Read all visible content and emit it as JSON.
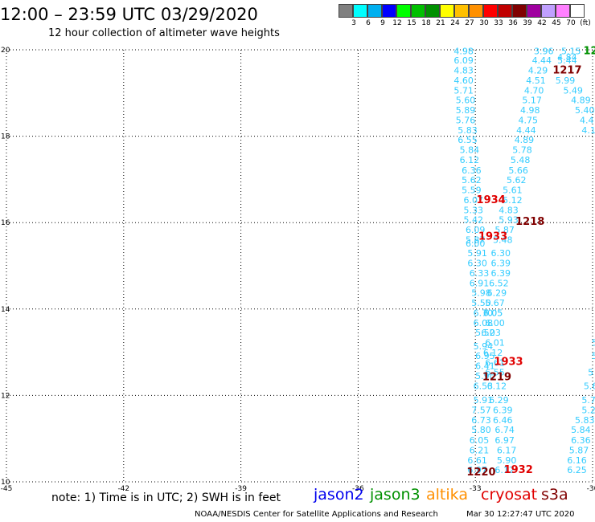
{
  "header": {
    "title": "12:00 – 23:59 UTC 03/29/2020",
    "subtitle": "12 hour collection of altimeter wave heights"
  },
  "colorbar": {
    "colors": [
      "#808080",
      "#00ffff",
      "#00b0f0",
      "#0000ff",
      "#00ff00",
      "#00c000",
      "#009000",
      "#ffff00",
      "#ffc000",
      "#ff9000",
      "#ff0000",
      "#c00000",
      "#800000",
      "#a000a0",
      "#c0a0ff",
      "#ff80ff",
      "#ffffff"
    ],
    "labels": [
      "3",
      "6",
      "9",
      "12",
      "15",
      "18",
      "21",
      "24",
      "27",
      "30",
      "33",
      "36",
      "39",
      "42",
      "45",
      "70",
      "(ft)"
    ]
  },
  "map": {
    "lon_ticks": [
      "-45",
      "-42",
      "-39",
      "-36",
      "-33",
      "-30"
    ],
    "lat_ticks": [
      "20",
      "18",
      "16",
      "14",
      "12",
      "10"
    ],
    "lon_range": [
      -45,
      -30
    ],
    "lat_range": [
      10,
      20
    ]
  },
  "tracks": [
    {
      "color": "#33ccff",
      "points": [
        [
          "4.98",
          -33.3,
          19.9
        ],
        [
          "6.09",
          -33.3,
          19.68
        ],
        [
          "4.83",
          -33.3,
          19.45
        ],
        [
          "4.60",
          -33.3,
          19.22
        ],
        [
          "5.71",
          -33.3,
          18.99
        ],
        [
          "5.60",
          -33.25,
          18.76
        ],
        [
          "5.89",
          -33.25,
          18.53
        ],
        [
          "5.76",
          -33.25,
          18.3
        ],
        [
          "5.83",
          -33.2,
          18.07
        ],
        [
          "6.55",
          -33.2,
          17.84
        ],
        [
          "5.84",
          -33.15,
          17.61
        ],
        [
          "6.12",
          -33.15,
          17.38
        ],
        [
          "6.36",
          -33.1,
          17.14
        ],
        [
          "5.62",
          -33.1,
          16.91
        ],
        [
          "5.59",
          -33.1,
          16.68
        ],
        [
          "6.07",
          -33.05,
          16.45
        ],
        [
          "5.33",
          -33.05,
          16.22
        ],
        [
          "5.42",
          -33.05,
          15.99
        ],
        [
          "6.09",
          -33.0,
          15.76
        ],
        [
          "5.87",
          -33.0,
          15.53
        ],
        [
          "6.00",
          -33.0,
          15.45
        ],
        [
          "5.91",
          -32.95,
          15.22
        ],
        [
          "6.30",
          -32.95,
          14.99
        ],
        [
          "6.33",
          -32.9,
          14.76
        ],
        [
          "6.91",
          -32.9,
          14.53
        ],
        [
          "5.98",
          -32.85,
          14.3
        ],
        [
          "5.50",
          -32.85,
          14.07
        ],
        [
          "6.70",
          -32.8,
          13.84
        ],
        [
          "6.08",
          -32.8,
          13.61
        ],
        [
          "5.52",
          -32.75,
          13.38
        ],
        [
          "5.94",
          -32.8,
          13.07
        ],
        [
          "6.95",
          -32.75,
          12.84
        ],
        [
          "6.41",
          -32.75,
          12.61
        ],
        [
          "5.90",
          -32.75,
          12.38
        ],
        [
          "6.53",
          -32.8,
          12.15
        ],
        [
          "5.91",
          -32.8,
          11.82
        ],
        [
          "7.57",
          -32.85,
          11.59
        ],
        [
          "6.73",
          -32.85,
          11.36
        ],
        [
          "5.80",
          -32.85,
          11.13
        ],
        [
          "6.05",
          -32.9,
          10.89
        ],
        [
          "6.21",
          -32.9,
          10.66
        ],
        [
          "6.61",
          -32.95,
          10.43
        ],
        [
          "6.97",
          -32.95,
          10.2
        ]
      ]
    },
    {
      "color": "#33ccff",
      "points": [
        [
          "6.05",
          -32.55,
          13.84
        ],
        [
          "6.00",
          -32.5,
          13.61
        ],
        [
          "6.03",
          -32.6,
          13.38
        ],
        [
          "6.01",
          -32.5,
          13.15
        ],
        [
          "6.12",
          -32.55,
          12.92
        ],
        [
          "6.61",
          -32.5,
          12.69
        ],
        [
          "6.55",
          -32.5,
          12.46
        ],
        [
          "6.12",
          -32.45,
          12.15
        ],
        [
          "6.29",
          -32.4,
          11.82
        ],
        [
          "6.39",
          -32.3,
          11.59
        ],
        [
          "6.46",
          -32.3,
          11.36
        ],
        [
          "6.74",
          -32.25,
          11.13
        ],
        [
          "6.97",
          -32.25,
          10.89
        ],
        [
          "6.17",
          -32.2,
          10.66
        ],
        [
          "5.90",
          -32.2,
          10.43
        ],
        [
          "6.12",
          -32.25,
          10.2
        ]
      ]
    },
    {
      "color": "#33ccff",
      "points": [
        [
          "3.96",
          -31.25,
          19.9
        ],
        [
          "4.44",
          -31.3,
          19.68
        ],
        [
          "4.29",
          -31.4,
          19.45
        ],
        [
          "4.51",
          -31.45,
          19.22
        ],
        [
          "4.70",
          -31.5,
          18.99
        ],
        [
          "5.17",
          -31.55,
          18.76
        ],
        [
          "4.98",
          -31.6,
          18.53
        ],
        [
          "4.75",
          -31.65,
          18.3
        ],
        [
          "4.44",
          -31.7,
          18.07
        ],
        [
          "4.89",
          -31.75,
          17.84
        ],
        [
          "5.78",
          -31.8,
          17.61
        ],
        [
          "5.48",
          -31.85,
          17.38
        ],
        [
          "5.66",
          -31.9,
          17.14
        ],
        [
          "5.62",
          -31.95,
          16.91
        ],
        [
          "5.61",
          -32.05,
          16.68
        ],
        [
          "5.12",
          -32.05,
          16.45
        ],
        [
          "4.83",
          -32.15,
          16.22
        ],
        [
          "5.93",
          -32.15,
          15.99
        ],
        [
          "5.87",
          -32.25,
          15.76
        ],
        [
          "5.48",
          -32.3,
          15.53
        ],
        [
          "6.30",
          -32.35,
          15.22
        ],
        [
          "6.39",
          -32.35,
          14.99
        ],
        [
          "6.39",
          -32.35,
          14.76
        ],
        [
          "6.52",
          -32.4,
          14.53
        ],
        [
          "6.29",
          -32.45,
          14.3
        ],
        [
          "5.67",
          -32.5,
          14.07
        ],
        [
          "7.05",
          -32.55,
          13.84
        ]
      ]
    },
    {
      "color": "#33ccff",
      "points": [
        [
          "5.15",
          -30.55,
          19.9
        ],
        [
          "4.84",
          -30.65,
          19.76
        ],
        [
          "5.44",
          -30.65,
          19.68
        ],
        [
          "5.99",
          -30.7,
          19.22
        ],
        [
          "5.49",
          -30.5,
          18.99
        ],
        [
          "4.89",
          -30.3,
          18.76
        ],
        [
          "5.40",
          -30.2,
          18.53
        ],
        [
          "4.4",
          -30.15,
          18.3
        ],
        [
          "4.1",
          -30.1,
          18.07
        ]
      ]
    },
    {
      "color": "#33ccff",
      "points": [
        [
          "5",
          -29.95,
          13.15
        ],
        [
          "5",
          -29.95,
          12.84
        ],
        [
          "5",
          -30.05,
          12.46
        ],
        [
          "5.6",
          -30.05,
          12.15
        ],
        [
          "5.7",
          -30.1,
          11.82
        ],
        [
          "5.2",
          -30.1,
          11.59
        ],
        [
          "5.83",
          -30.2,
          11.36
        ],
        [
          "5.84",
          -30.3,
          11.13
        ],
        [
          "6.36",
          -30.3,
          10.89
        ],
        [
          "5.87",
          -30.35,
          10.66
        ],
        [
          "6.16",
          -30.4,
          10.43
        ],
        [
          "6.25",
          -30.4,
          10.2
        ]
      ]
    }
  ],
  "time_labels": [
    {
      "text": "1934",
      "color": "#e00000",
      "lon": -32.6,
      "lat": 16.45
    },
    {
      "text": "1218",
      "color": "#800000",
      "lon": -31.6,
      "lat": 15.95
    },
    {
      "text": "1933",
      "color": "#e00000",
      "lon": -32.55,
      "lat": 15.6
    },
    {
      "text": "1933",
      "color": "#e00000",
      "lon": -32.15,
      "lat": 12.7
    },
    {
      "text": "1219",
      "color": "#800000",
      "lon": -32.45,
      "lat": 12.35
    },
    {
      "text": "1220",
      "color": "#800000",
      "lon": -32.85,
      "lat": 10.15
    },
    {
      "text": "1932",
      "color": "#e00000",
      "lon": -31.9,
      "lat": 10.2
    },
    {
      "text": "1217",
      "color": "#800000",
      "lon": -30.65,
      "lat": 19.45
    },
    {
      "text": "12",
      "color": "#009000",
      "lon": -30.05,
      "lat": 19.9
    }
  ],
  "footer": {
    "note": "note: 1) Time is in UTC; 2) SWH is in feet",
    "satellites": [
      {
        "name": "jason2",
        "color": "#0000ee"
      },
      {
        "name": "jason3",
        "color": "#009000"
      },
      {
        "name": "altika",
        "color": "#ff9000"
      },
      {
        "name": "cryosat",
        "color": "#e00000"
      },
      {
        "name": "s3a",
        "color": "#800000"
      }
    ],
    "credit": "NOAA/NESDIS Center for Satellite Applications and Research",
    "timestamp": "Mar 30 12:27:47 UTC 2020"
  }
}
